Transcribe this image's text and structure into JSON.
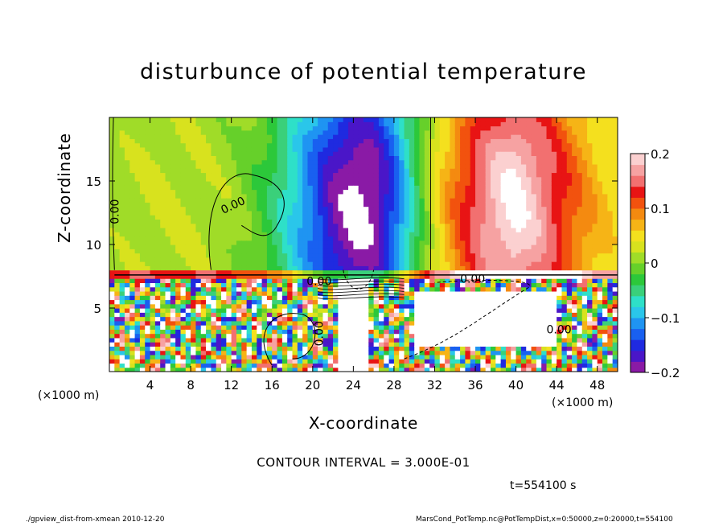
{
  "chart_data": {
    "type": "heatmap",
    "title": "disturbunce of potential temperature",
    "xlabel": "X-coordinate",
    "ylabel": "Z-coordinate",
    "x_unit_label": "(×1000 m)",
    "xlim": [
      0,
      50
    ],
    "ylim": [
      0,
      20
    ],
    "x_ticks": [
      4,
      8,
      12,
      16,
      20,
      24,
      28,
      32,
      36,
      40,
      44,
      48
    ],
    "y_ticks": [
      5,
      10,
      15
    ],
    "colorbar": {
      "min": -0.2,
      "max": 0.2,
      "tick_values": [
        0.2,
        0.1,
        0,
        -0.1,
        -0.2
      ],
      "tick_labels": [
        "0.2",
        "0.1",
        "0",
        "−0.1",
        "−0.2"
      ],
      "colors": [
        "#8a1aa6",
        "#4a16c8",
        "#1f2ae0",
        "#1960f0",
        "#1f94f2",
        "#2ac6ea",
        "#2ee0c8",
        "#3ad07a",
        "#2cc83a",
        "#66d02a",
        "#a0dc28",
        "#d8e21e",
        "#f4e01e",
        "#f6b416",
        "#f48a10",
        "#f2520e",
        "#e81414",
        "#f27070",
        "#f6a2a2",
        "#fbd0d0"
      ]
    },
    "contour_labels": [
      "0.00",
      "0.00",
      "0.00",
      "0.00",
      "0.00",
      "0.00"
    ],
    "contour_interval_text": "CONTOUR INTERVAL = 3.000E-01",
    "time_text": "t=554100 s",
    "field_description": {
      "upper_layer_columns": [
        {
          "x": 0,
          "value": 0.01
        },
        {
          "x": 4,
          "value": 0.02
        },
        {
          "x": 8,
          "value": 0.02
        },
        {
          "x": 12,
          "value": 0.01
        },
        {
          "x": 15,
          "value": -0.02
        },
        {
          "x": 18,
          "value": -0.08
        },
        {
          "x": 20,
          "value": -0.13
        },
        {
          "x": 22,
          "value": -0.18
        },
        {
          "x": 24,
          "value": -0.21
        },
        {
          "x": 26,
          "value": -0.2
        },
        {
          "x": 28,
          "value": -0.14
        },
        {
          "x": 30,
          "value": -0.05
        },
        {
          "x": 32,
          "value": 0.04
        },
        {
          "x": 34,
          "value": 0.1
        },
        {
          "x": 36,
          "value": 0.15
        },
        {
          "x": 38,
          "value": 0.19
        },
        {
          "x": 40,
          "value": 0.21
        },
        {
          "x": 42,
          "value": 0.18
        },
        {
          "x": 44,
          "value": 0.14
        },
        {
          "x": 46,
          "value": 0.1
        },
        {
          "x": 48,
          "value": 0.07
        },
        {
          "x": 50,
          "value": 0.05
        }
      ],
      "interface_height": 7.5
    }
  },
  "footer": {
    "left": "./gpview_dist-from-xmean  2010-12-20",
    "right": "MarsCond_PotTemp.nc@PotTempDist,x=0:50000,z=0:20000,t=554100"
  }
}
